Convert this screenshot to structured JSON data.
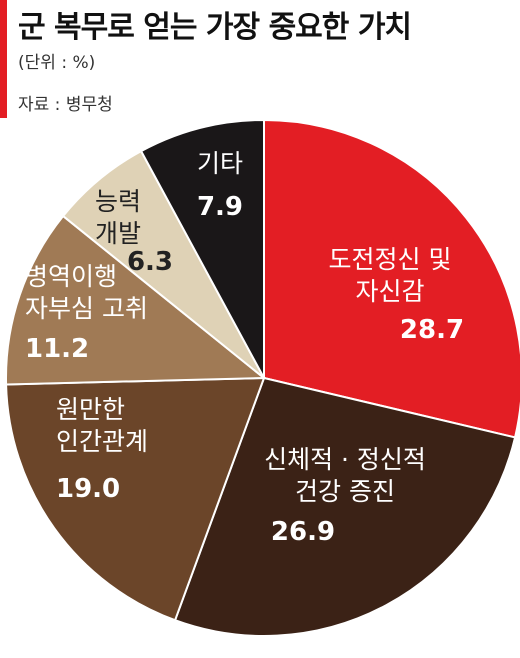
{
  "header": {
    "title": "군 복무로 얻는 가장 중요한 가치",
    "unit": "(단위 : %)",
    "source": "자료 : 병무청"
  },
  "chart_data": {
    "type": "pie",
    "title": "군 복무로 얻는 가장 중요한 가치",
    "unit": "%",
    "start_angle_deg": 0,
    "direction": "clockwise",
    "slices": [
      {
        "label_lines": [
          "도전정신 및",
          "자신감"
        ],
        "value": 28.7,
        "value_label": "28.7",
        "color": "#e31e24",
        "text_color": "#ffffff"
      },
      {
        "label_lines": [
          "신체적 · 정신적",
          "건강 증진"
        ],
        "value": 26.9,
        "value_label": "26.9",
        "color": "#3b2216",
        "text_color": "#ffffff"
      },
      {
        "label_lines": [
          "원만한",
          "인간관계"
        ],
        "value": 19.0,
        "value_label": "19.0",
        "color": "#6b4529",
        "text_color": "#ffffff"
      },
      {
        "label_lines": [
          "병역이행",
          "자부심 고취"
        ],
        "value": 11.2,
        "value_label": "11.2",
        "color": "#a07a55",
        "text_color": "#ffffff"
      },
      {
        "label_lines": [
          "능력",
          "개발"
        ],
        "value": 6.3,
        "value_label": "6.3",
        "color": "#dfd2b6",
        "text_color": "#222222"
      },
      {
        "label_lines": [
          "기타"
        ],
        "value": 7.9,
        "value_label": "7.9",
        "color": "#1a1718",
        "text_color": "#ffffff"
      }
    ]
  }
}
